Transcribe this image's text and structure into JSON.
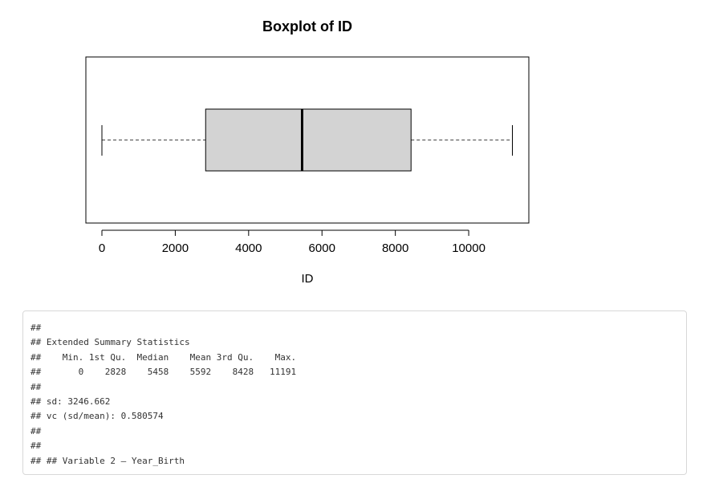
{
  "chart_data": {
    "type": "boxplot",
    "title": "Boxplot of ID",
    "xlabel": "ID",
    "orientation": "horizontal",
    "xlim": [
      0,
      11191
    ],
    "ticks": [
      0,
      2000,
      4000,
      6000,
      8000,
      10000
    ],
    "tick_labels": [
      "0",
      "2000",
      "4000",
      "6000",
      "8000",
      "10000"
    ],
    "box": {
      "min": 0,
      "q1": 2828,
      "median": 5458,
      "q3": 8428,
      "max": 11191
    },
    "colors": {
      "box_fill": "#d3d3d3",
      "lines": "#000000"
    }
  },
  "output": {
    "lines": [
      "##",
      "## Extended Summary Statistics",
      "##    Min. 1st Qu.  Median    Mean 3rd Qu.    Max.",
      "##       0    2828    5458    5592    8428   11191",
      "##",
      "## sd: 3246.662",
      "## vc (sd/mean): 0.580574",
      "##",
      "##",
      "## ## Variable 2 — Year_Birth"
    ]
  }
}
